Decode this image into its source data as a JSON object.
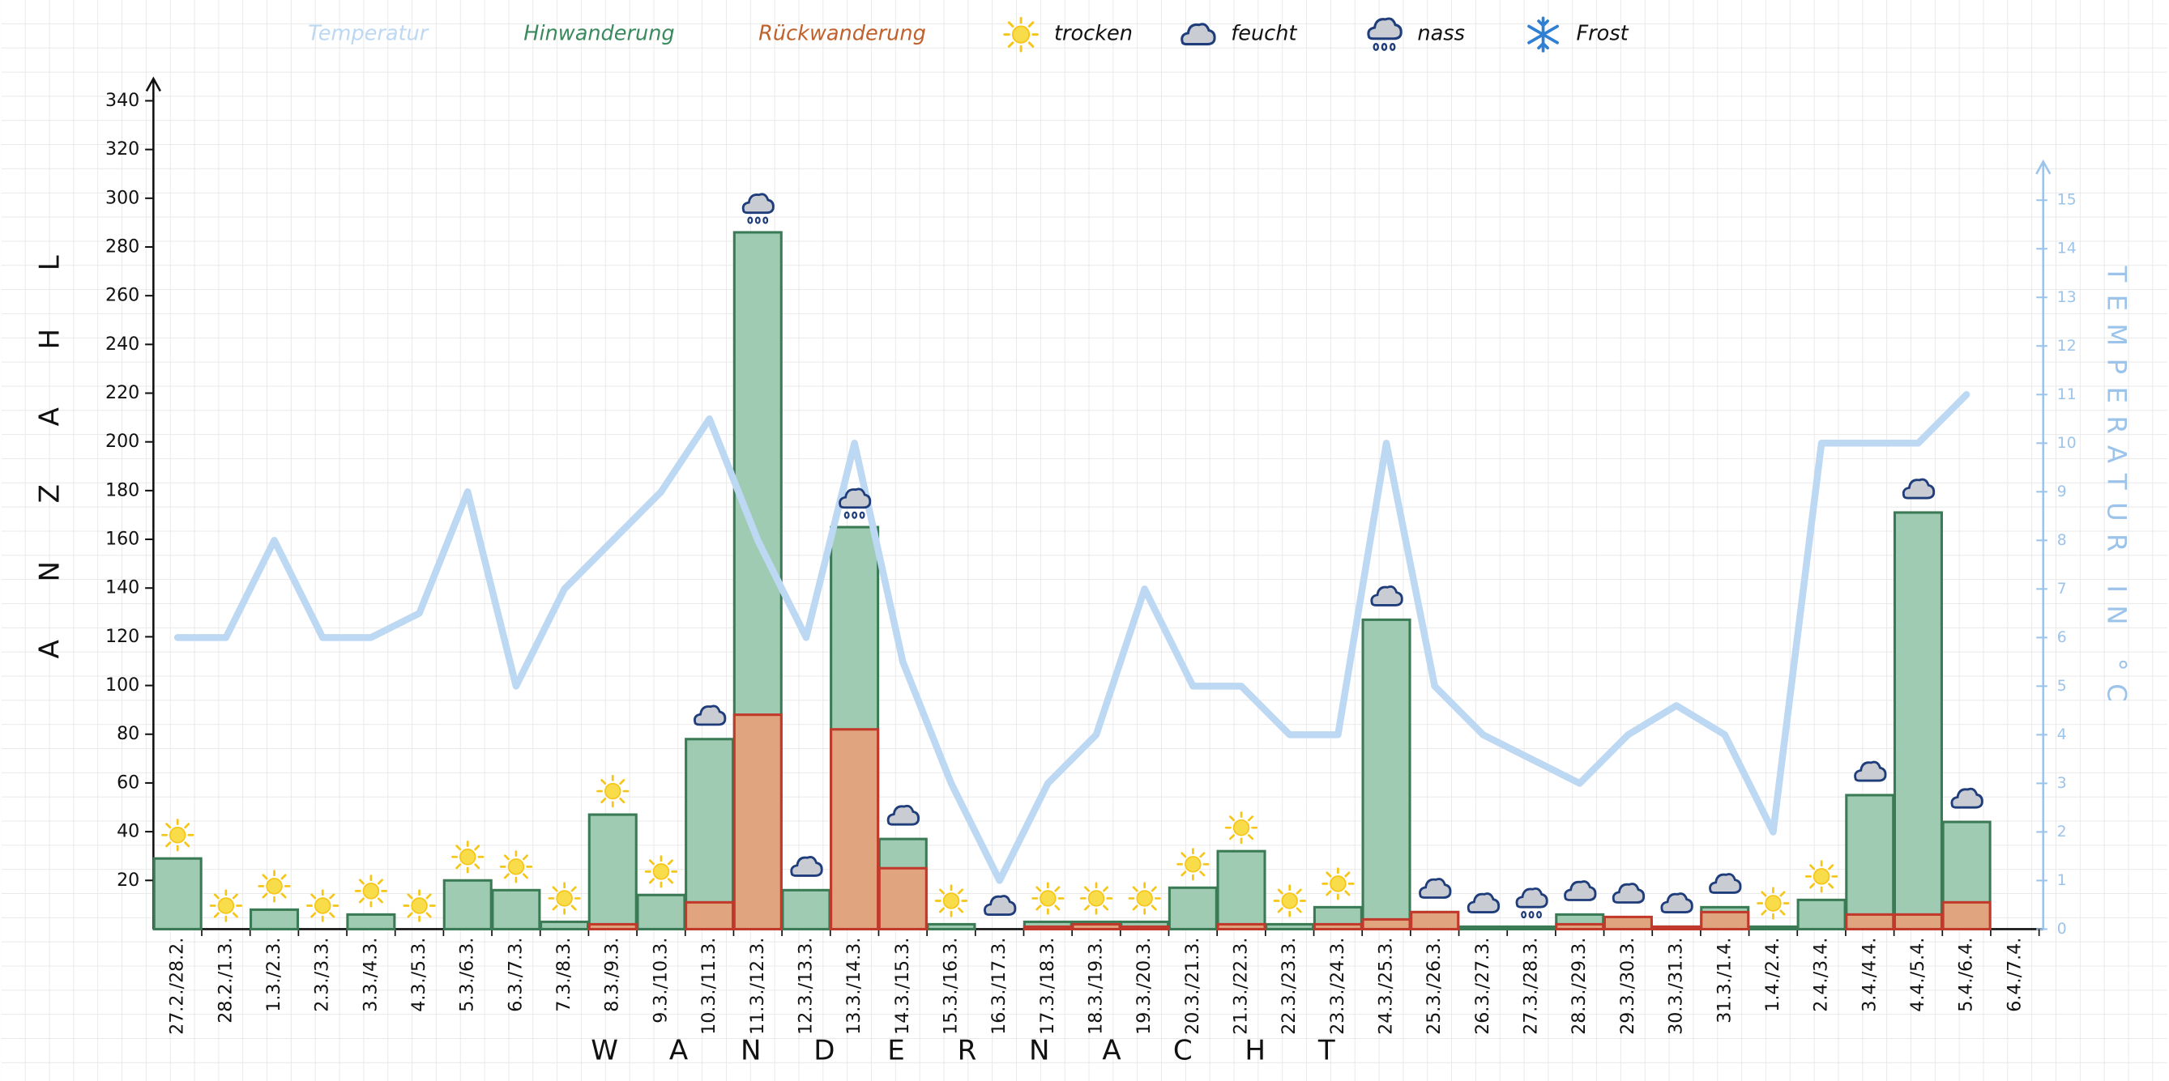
{
  "chart_data": {
    "type": "bar",
    "categories": [
      "27.2./28.2.",
      "28.2./1.3.",
      "1.3./2.3.",
      "2.3./3.3.",
      "3.3./4.3.",
      "4.3./5.3.",
      "5.3./6.3.",
      "6.3./7.3.",
      "7.3./8.3.",
      "8.3./9.3.",
      "9.3./10.3.",
      "10.3./11.3.",
      "11.3./12.3.",
      "12.3./13.3.",
      "13.3./14.3.",
      "14.3./15.3.",
      "15.3./16.3.",
      "16.3./17.3.",
      "17.3./18.3.",
      "18.3./19.3.",
      "19.3./20.3.",
      "20.3./21.3.",
      "21.3./22.3.",
      "22.3./23.3.",
      "23.3./24.3.",
      "24.3./25.3.",
      "25.3./26.3.",
      "26.3./27.3.",
      "27.3./28.3.",
      "28.3./29.3.",
      "29.3./30.3.",
      "30.3./31.3.",
      "31.3./1.4.",
      "1.4./2.4.",
      "2.4./3.4.",
      "3.4./4.4.",
      "4.4./5.4.",
      "5.4./6.4.",
      "6.4./7.4."
    ],
    "series": [
      {
        "name": "Temperatur",
        "color": "#bcd8f3",
        "axis": "y2",
        "type": "line",
        "values": [
          6,
          6,
          8,
          6,
          6,
          6.5,
          9,
          5,
          7,
          8,
          9,
          10.5,
          8,
          6,
          10,
          5.5,
          3,
          1,
          3,
          4,
          7,
          5,
          5,
          4,
          4,
          10,
          5,
          4,
          3.5,
          3,
          4,
          4.6,
          4,
          2,
          10,
          10,
          10,
          11,
          null
        ]
      },
      {
        "name": "Hinwanderung",
        "color": "#9ecbb2",
        "edge": "#3a7a55",
        "type": "bar",
        "values": [
          29,
          0,
          8,
          0,
          6,
          0,
          20,
          16,
          3,
          47,
          14,
          78,
          286,
          16,
          165,
          37,
          2,
          0,
          3,
          3,
          3,
          17,
          32,
          2,
          9,
          127,
          7,
          1,
          1,
          6,
          3,
          1,
          9,
          1,
          12,
          55,
          171,
          44,
          0
        ]
      },
      {
        "name": "Rückwanderung",
        "color": "#e0a57f",
        "edge": "#c0392b",
        "type": "bar",
        "values": [
          0,
          0,
          0,
          0,
          0,
          0,
          0,
          0,
          0,
          2,
          0,
          11,
          88,
          0,
          82,
          25,
          0,
          0,
          1,
          2,
          1,
          0,
          2,
          0,
          2,
          4,
          7,
          0,
          0,
          2,
          5,
          1,
          7,
          0,
          0,
          6,
          6,
          11,
          0
        ]
      }
    ],
    "weather_legend": [
      "trocken",
      "feucht",
      "nass",
      "Frost"
    ],
    "weather": [
      "trocken",
      "trocken",
      "trocken",
      "trocken",
      "trocken",
      "trocken",
      "trocken",
      "trocken",
      "trocken",
      "trocken",
      "trocken",
      "feucht",
      "nass",
      "feucht",
      "nass",
      "feucht",
      "trocken",
      "feucht",
      "trocken",
      "trocken",
      "trocken",
      "trocken",
      "trocken",
      "trocken",
      "trocken",
      "feucht",
      "feucht",
      "feucht",
      "nass",
      "feucht",
      "feucht",
      "feucht",
      "feucht",
      "trocken",
      "trocken",
      "feucht",
      "feucht",
      "feucht",
      null
    ],
    "xlabel": "WANDERNACHT",
    "ylabel": "ANZAHL",
    "y2label": "TEMPERATUR IN °C",
    "ylim": [
      0,
      340
    ],
    "yticks": [
      20,
      40,
      60,
      80,
      100,
      120,
      140,
      160,
      180,
      200,
      220,
      240,
      260,
      280,
      300,
      320,
      340
    ],
    "y2lim": [
      0,
      15
    ],
    "y2ticks": [
      0,
      1,
      2,
      3,
      4,
      5,
      6,
      7,
      8,
      9,
      10,
      11,
      12,
      13,
      14,
      15
    ],
    "grid": true
  }
}
